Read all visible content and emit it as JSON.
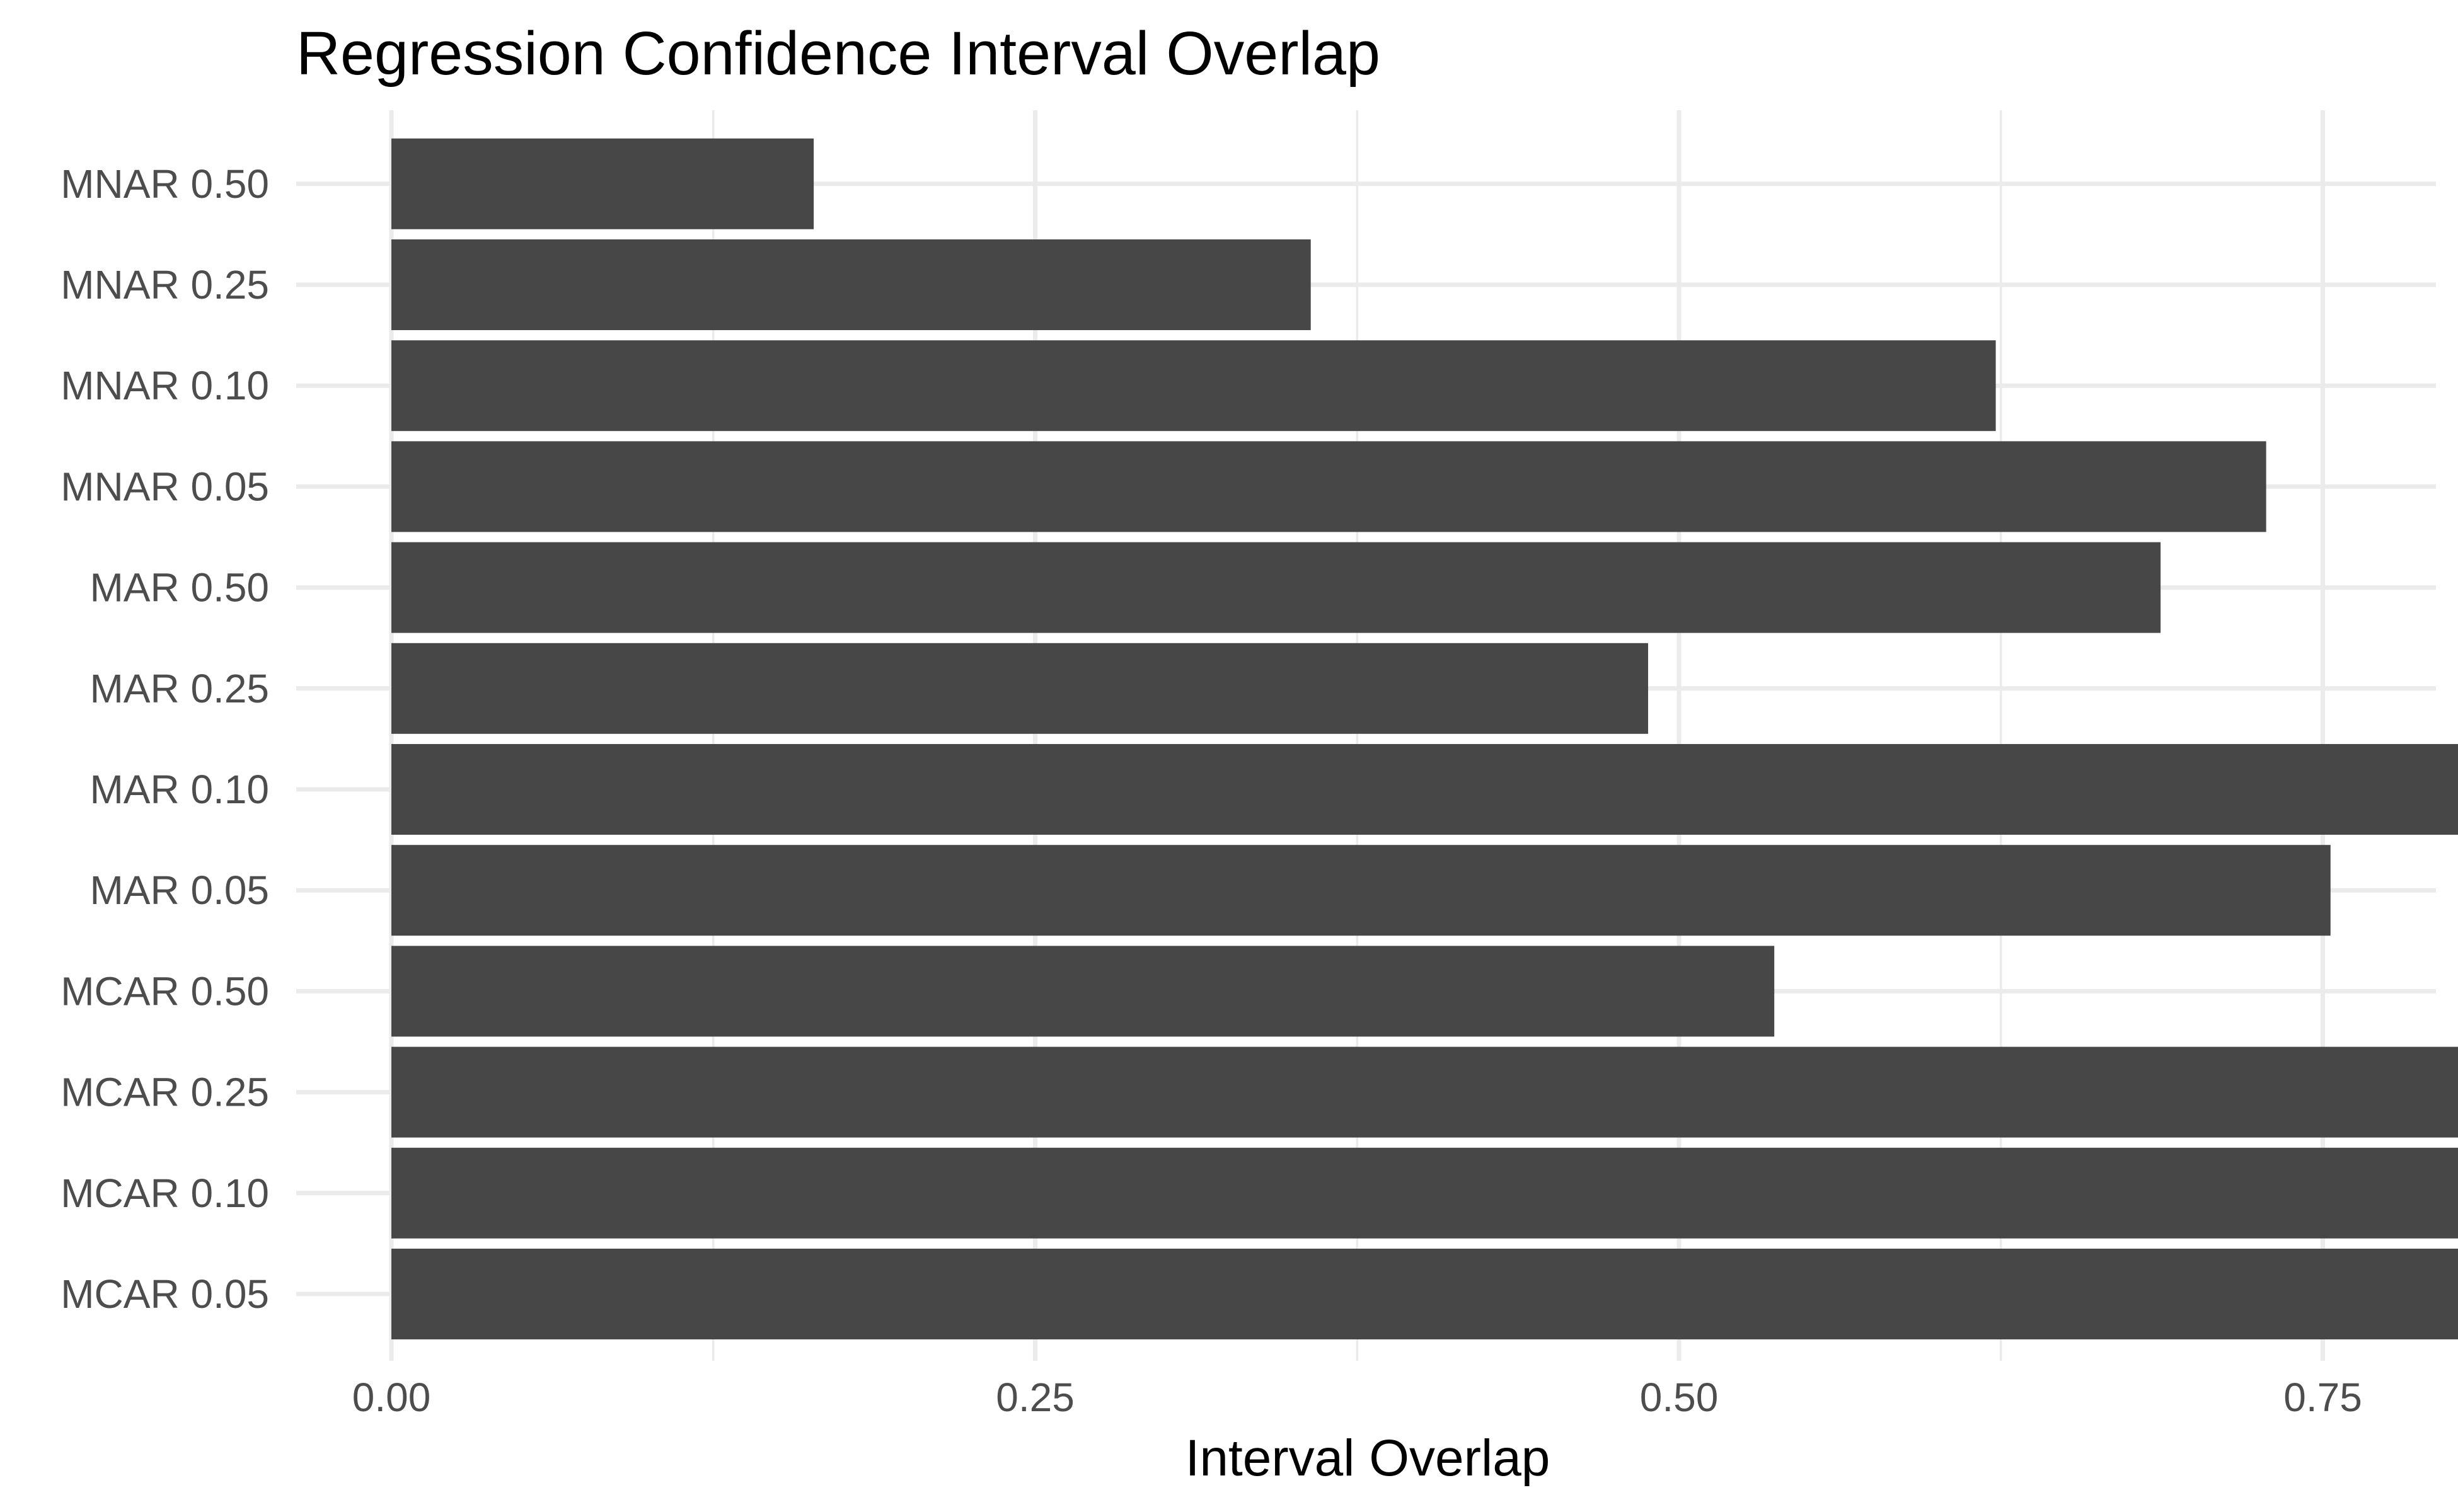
{
  "chart_data": {
    "type": "bar",
    "orientation": "horizontal",
    "title": "Regression Confidence Interval Overlap",
    "xlabel": "Interval Overlap",
    "ylabel": "",
    "categories": [
      "MCAR 0.05",
      "MCAR 0.10",
      "MCAR 0.25",
      "MCAR 0.50",
      "MAR 0.05",
      "MAR 0.10",
      "MAR 0.25",
      "MAR 0.50",
      "MNAR 0.05",
      "MNAR 0.10",
      "MNAR 0.25",
      "MNAR 0.50"
    ],
    "values": [
      0.934,
      0.947,
      0.864,
      0.537,
      0.753,
      0.827,
      0.488,
      0.687,
      0.728,
      0.623,
      0.357,
      0.164
    ],
    "xlim": [
      0,
      0.947
    ],
    "xticks": [
      0.0,
      0.25,
      0.5,
      0.75
    ],
    "xtick_labels": [
      "0.00",
      "0.25",
      "0.50",
      "0.75"
    ],
    "grid": true,
    "legend": "none",
    "colors": {
      "bar": "#474747",
      "grid": "#ebebeb",
      "background": "#ffffff"
    }
  }
}
